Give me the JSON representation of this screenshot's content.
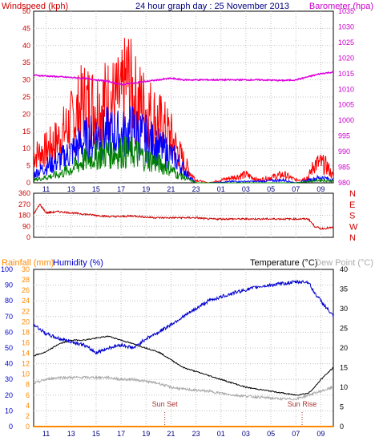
{
  "header": {
    "left_label": "Windspeed (kph)",
    "title": "24 hour graph day : 25 November 2013",
    "right_label": "Barometer (hpa)"
  },
  "colors": {
    "windspeed": "#ff0000",
    "gust": "#ff0000",
    "avg": "#0000ff",
    "speed_green": "#008000",
    "barometer": "#dd00dd",
    "direction": "#cc0000",
    "temperature": "#000000",
    "humidity": "#0000cc",
    "dewpoint": "#aaaaaa",
    "rainfall": "#ff8800",
    "axis_left": "#cc0000",
    "axis_right": "#cc00cc",
    "axis_blue": "#0000cc",
    "grid": "#c0c0c0"
  },
  "chart_data": [
    {
      "id": "wind",
      "type": "line",
      "title": "24 hour graph day : 25 November 2013",
      "ylabel": "Windspeed (kph)",
      "y2label": "Barometer (hpa)",
      "x_hours": [
        10,
        34
      ],
      "x_ticks": [
        "11",
        "13",
        "15",
        "17",
        "19",
        "21",
        "23",
        "01",
        "03",
        "05",
        "07",
        "09"
      ],
      "ylim": [
        0,
        50
      ],
      "y_ticks": [
        0,
        5,
        10,
        15,
        20,
        25,
        30,
        35,
        40,
        45,
        50
      ],
      "y2lim": [
        980,
        1035
      ],
      "y2_ticks": [
        980,
        985,
        990,
        995,
        1000,
        1005,
        1010,
        1015,
        1020,
        1025,
        1030,
        1035
      ],
      "series": [
        {
          "key": "gust",
          "x": [
            10,
            11,
            12,
            13,
            14,
            15,
            16,
            17,
            17.5,
            18,
            19,
            20,
            21,
            21.5,
            22,
            22.5,
            23,
            24,
            25,
            26,
            27,
            28,
            29,
            30,
            31,
            32,
            32.5,
            33,
            33.5,
            34
          ],
          "y": [
            10,
            12,
            16,
            22,
            29,
            28,
            30,
            30,
            38,
            31,
            27,
            22,
            17,
            12,
            8,
            4,
            1,
            0,
            1,
            2,
            3,
            1,
            2,
            3,
            1,
            2,
            7,
            7,
            6,
            2
          ]
        },
        {
          "key": "avg",
          "x": [
            10,
            11,
            12,
            13,
            14,
            15,
            16,
            17,
            18,
            19,
            20,
            21,
            21.5,
            22,
            22.5,
            23,
            24,
            26,
            28,
            30,
            31,
            32,
            33,
            34
          ],
          "y": [
            3,
            6,
            8,
            11,
            15,
            17,
            18,
            17,
            19,
            16,
            13,
            10,
            8,
            5,
            2,
            0,
            0,
            0.5,
            0.5,
            1,
            0,
            1,
            2,
            1
          ]
        },
        {
          "key": "speed_green",
          "x": [
            10,
            11,
            12,
            13,
            14,
            15,
            16,
            17,
            18,
            19,
            20,
            21,
            21.5,
            22,
            22.5,
            23,
            24,
            30,
            31,
            32,
            33,
            34
          ],
          "y": [
            1,
            2,
            3,
            5,
            8,
            10,
            11,
            11,
            11,
            9,
            7,
            5,
            3,
            2,
            1,
            0,
            0,
            0,
            0,
            0.5,
            1,
            0.5
          ]
        },
        {
          "key": "barometer",
          "axis": "y2",
          "x": [
            10,
            12,
            14,
            15,
            16,
            17,
            18,
            19,
            20,
            21,
            22,
            24,
            26,
            28,
            30,
            31,
            32,
            33,
            34
          ],
          "y": [
            1014.5,
            1014,
            1013.5,
            1013,
            1012.5,
            1011.5,
            1012,
            1012.5,
            1013,
            1013.5,
            1013,
            1013,
            1013,
            1013,
            1012.8,
            1013,
            1014,
            1015,
            1015.5
          ]
        }
      ]
    },
    {
      "id": "direction",
      "type": "line",
      "x_hours": [
        10,
        34
      ],
      "ylim": [
        0,
        360
      ],
      "y_ticks": [
        0,
        90,
        180,
        270,
        360
      ],
      "compass_labels": [
        "N",
        "W",
        "S",
        "E",
        "N"
      ],
      "series": [
        {
          "key": "direction",
          "x": [
            10,
            10.5,
            11,
            12,
            13,
            14,
            15,
            16,
            17,
            18,
            19,
            20,
            21,
            22,
            23,
            24,
            26,
            28,
            30,
            31,
            32,
            32.5,
            33,
            34
          ],
          "y": [
            190,
            270,
            200,
            210,
            200,
            190,
            180,
            170,
            170,
            175,
            165,
            160,
            160,
            160,
            160,
            150,
            150,
            150,
            150,
            150,
            150,
            90,
            70,
            80
          ]
        }
      ]
    },
    {
      "id": "temperature",
      "type": "line",
      "labels": {
        "rainfall": "Rainfall (mm)",
        "humidity": "Humidity (%)",
        "temperature": "Temperature (°C)",
        "dewpoint": "Dew Point (°C)"
      },
      "x_hours": [
        10,
        34
      ],
      "x_ticks": [
        "11",
        "13",
        "15",
        "17",
        "19",
        "21",
        "23",
        "01",
        "03",
        "05",
        "07",
        "09"
      ],
      "hum_lim": [
        0,
        100
      ],
      "hum_ticks": [
        0,
        10,
        20,
        30,
        40,
        50,
        60,
        70,
        80,
        90,
        100
      ],
      "rain_lim": [
        0,
        30
      ],
      "rain_ticks": [
        0,
        2,
        4,
        6,
        8,
        10,
        12,
        14,
        16,
        18,
        20,
        22,
        24,
        26,
        28,
        30
      ],
      "temp_lim": [
        0,
        40
      ],
      "temp_ticks": [
        0,
        5,
        10,
        15,
        20,
        25,
        30,
        35,
        40
      ],
      "annotations": [
        {
          "label": "Sun Set",
          "hour": 20.5
        },
        {
          "label": "Sun Rise",
          "hour": 31.5
        }
      ],
      "series": [
        {
          "key": "humidity",
          "axis": "hum",
          "x": [
            10,
            11,
            12,
            13,
            14,
            15,
            16,
            17,
            18,
            19,
            20,
            22,
            24,
            26,
            28,
            30,
            31,
            32,
            32.5,
            33,
            34
          ],
          "y": [
            65,
            59,
            56,
            54,
            52,
            47,
            50,
            52,
            50,
            56,
            60,
            70,
            80,
            85,
            89,
            91,
            92,
            92,
            85,
            80,
            70
          ]
        },
        {
          "key": "temperature",
          "axis": "temp",
          "x": [
            10,
            11,
            12,
            13,
            14,
            15,
            16,
            17,
            18,
            19,
            20,
            21,
            22,
            23,
            24,
            25,
            26,
            27,
            28,
            29,
            30,
            31,
            32,
            32.5,
            33,
            34
          ],
          "y": [
            18,
            19,
            21,
            22,
            22,
            22.5,
            23,
            22,
            21,
            20,
            19,
            17,
            15,
            14,
            13,
            12,
            11,
            10,
            9.5,
            9,
            8.5,
            8,
            8.5,
            10,
            12,
            15
          ]
        },
        {
          "key": "dewpoint",
          "axis": "temp",
          "x": [
            10,
            11,
            12,
            13,
            14,
            15,
            16,
            17,
            18,
            19,
            20,
            21,
            22,
            24,
            26,
            28,
            30,
            31,
            32,
            33,
            34
          ],
          "y": [
            11,
            12,
            12.5,
            12.5,
            12.5,
            12.5,
            12.5,
            12,
            12,
            11.5,
            11,
            10,
            9.5,
            9,
            8,
            7.5,
            7,
            7,
            8,
            9,
            10
          ]
        },
        {
          "key": "rainfall",
          "axis": "rain",
          "x": [
            10,
            34
          ],
          "y": [
            0,
            0
          ]
        }
      ]
    }
  ]
}
